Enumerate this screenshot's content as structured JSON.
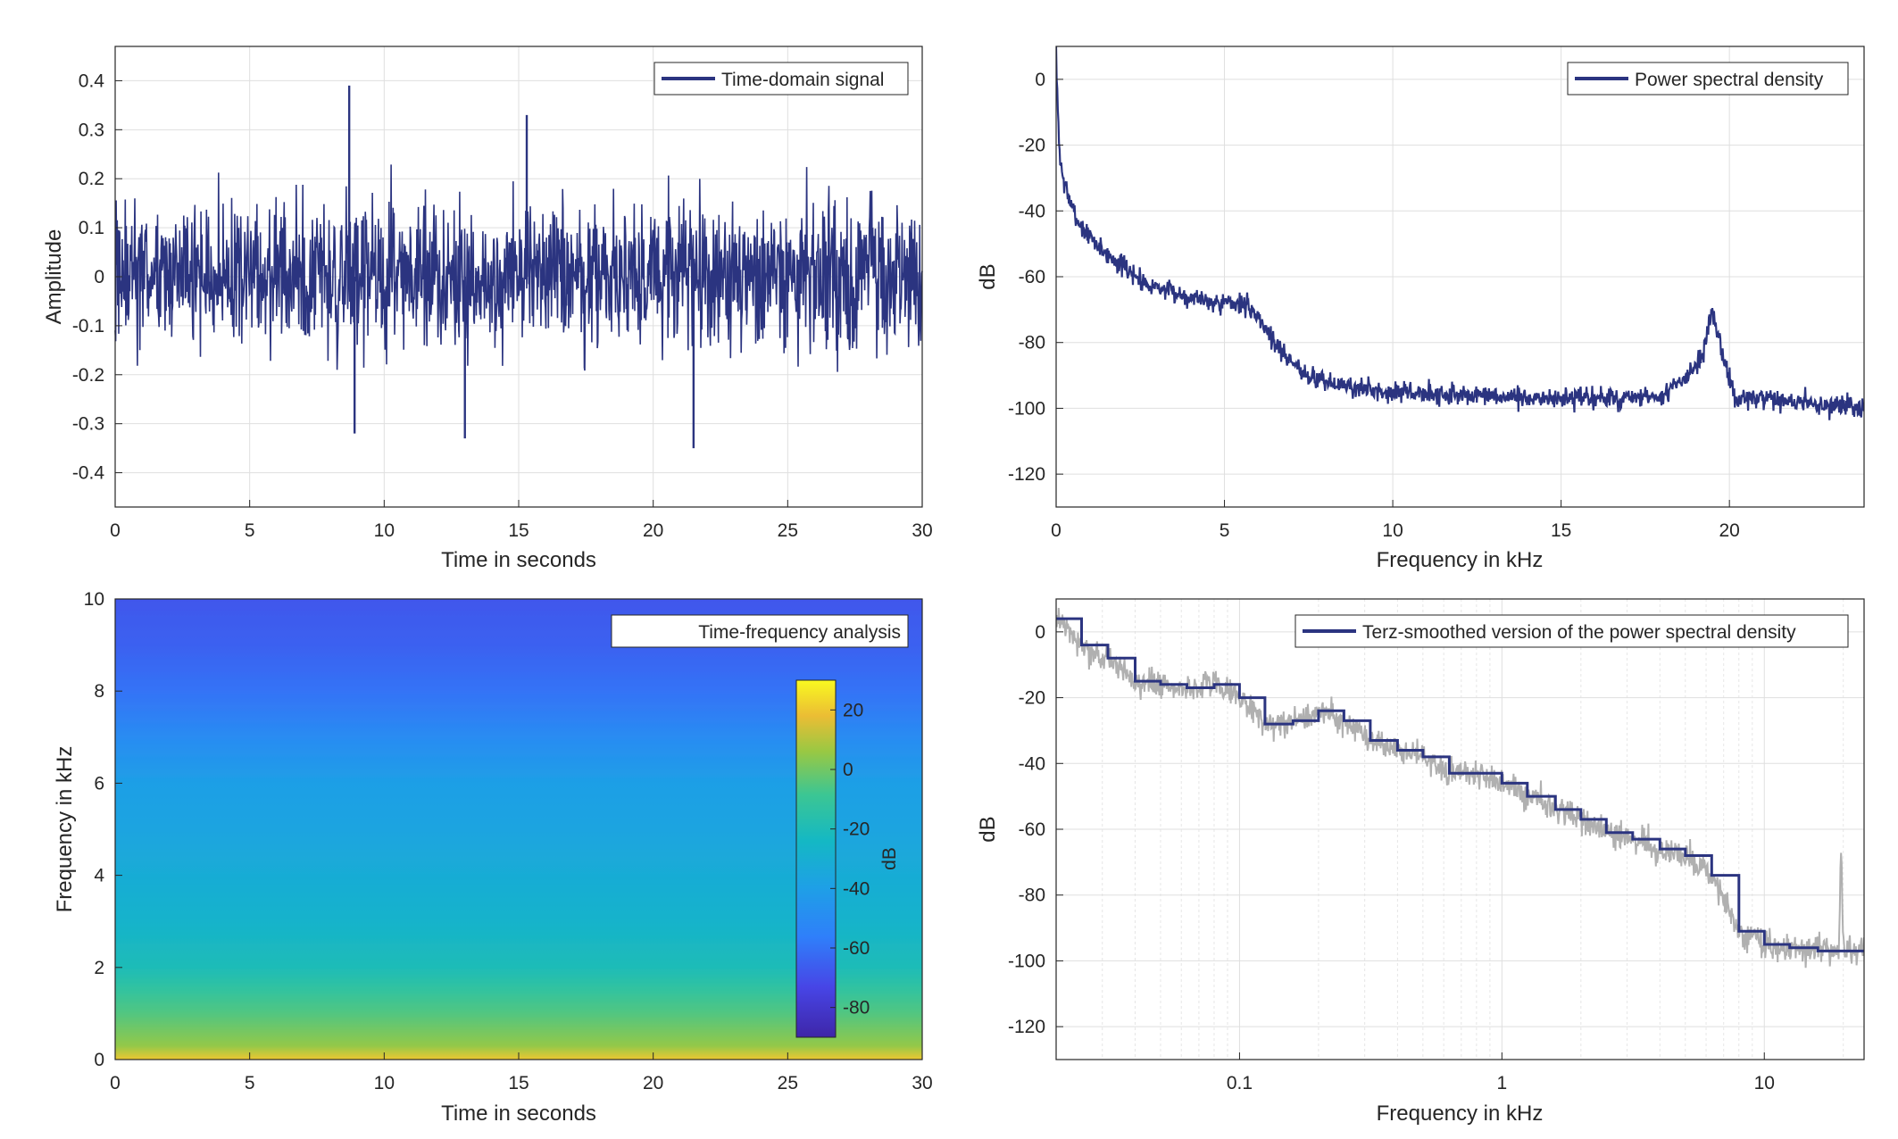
{
  "chart_data": [
    {
      "type": "line",
      "series": [
        {
          "name": "Time-domain signal"
        }
      ],
      "xlabel": "Time in seconds",
      "ylabel": "Amplitude",
      "xlim": [
        0,
        30
      ],
      "ylim": [
        -0.47,
        0.47
      ],
      "xticks": [
        "0",
        "5",
        "10",
        "15",
        "20",
        "25",
        "30"
      ],
      "yticks": [
        "0.4",
        "0.3",
        "0.2",
        "0.1",
        "0",
        "-0.1",
        "-0.2",
        "-0.3",
        "-0.4"
      ],
      "color": "#2b3480",
      "grid": true,
      "legend": "top-right",
      "approx_envelope": {
        "typical_max": 0.2,
        "typical_min": -0.2,
        "peaks": [
          {
            "t": 8.7,
            "v": 0.39
          },
          {
            "t": 15.3,
            "v": 0.33
          },
          {
            "t": 21.5,
            "v": -0.35
          },
          {
            "t": 13.0,
            "v": -0.33
          },
          {
            "t": 8.9,
            "v": -0.32
          }
        ]
      }
    },
    {
      "type": "line",
      "series": [
        {
          "name": "Power spectral density"
        }
      ],
      "xlabel": "Frequency in kHz",
      "ylabel": "dB",
      "xlim": [
        0,
        24
      ],
      "ylim": [
        -130,
        10
      ],
      "xticks": [
        "0",
        "5",
        "10",
        "15",
        "20"
      ],
      "yticks": [
        "0",
        "-20",
        "-40",
        "-60",
        "-80",
        "-100",
        "-120"
      ],
      "color": "#2b3480",
      "grid": true,
      "legend": "top-right",
      "x": [
        0,
        0.05,
        0.1,
        0.2,
        0.35,
        0.5,
        0.7,
        1.0,
        1.5,
        2.0,
        2.5,
        3.0,
        3.5,
        4.0,
        4.5,
        5.0,
        5.5,
        6.0,
        6.5,
        7.0,
        7.5,
        8.0,
        8.5,
        9.0,
        10,
        12,
        14,
        16,
        18,
        19.2,
        19.5,
        19.8,
        20.2,
        22,
        24
      ],
      "values": [
        8,
        -10,
        -22,
        -30,
        -35,
        -40,
        -44,
        -48,
        -53,
        -57,
        -61,
        -63,
        -65,
        -66,
        -67,
        -68,
        -68,
        -72,
        -80,
        -86,
        -90,
        -92,
        -93,
        -94,
        -95,
        -96,
        -97,
        -97,
        -97,
        -85,
        -70,
        -85,
        -97,
        -98,
        -100
      ]
    },
    {
      "type": "heatmap",
      "title": "Time-frequency analysis",
      "xlabel": "Time in seconds",
      "ylabel": "Frequency in kHz",
      "xlim": [
        0,
        30
      ],
      "ylim": [
        0,
        10
      ],
      "xticks": [
        "0",
        "5",
        "10",
        "15",
        "20",
        "25",
        "30"
      ],
      "yticks": [
        "10",
        "8",
        "6",
        "4",
        "2",
        "0"
      ],
      "colorbar": {
        "label": "dB",
        "range": [
          -90,
          30
        ],
        "ticks": [
          "20",
          "0",
          "-20",
          "-40",
          "-60",
          "-80"
        ],
        "colormap": "parula"
      },
      "freq_profile_kHz": [
        0,
        0.3,
        1,
        1.5,
        2,
        3,
        4,
        5,
        6,
        7,
        8,
        9,
        10
      ],
      "freq_profile_dB": [
        20,
        5,
        -5,
        -12,
        -20,
        -27,
        -32,
        -37,
        -40,
        -50,
        -60,
        -65,
        -68
      ]
    },
    {
      "type": "line",
      "series": [
        {
          "name": "Terz-smoothed version of the power spectral density",
          "color": "#2b3480"
        },
        {
          "name": "",
          "color": "#b0b0b0"
        }
      ],
      "xlabel": "Frequency in kHz",
      "ylabel": "dB",
      "xscale": "log",
      "xlim": [
        0.02,
        24
      ],
      "ylim": [
        -130,
        10
      ],
      "xticks": [
        "0.1",
        "1",
        "10"
      ],
      "yticks": [
        "0",
        "-20",
        "-40",
        "-60",
        "-80",
        "-100",
        "-120"
      ],
      "grid": true,
      "legend": "top-right",
      "steps_kHz": [
        0.02,
        0.025,
        0.0315,
        0.04,
        0.05,
        0.063,
        0.08,
        0.1,
        0.125,
        0.16,
        0.2,
        0.25,
        0.315,
        0.4,
        0.5,
        0.63,
        0.8,
        1.0,
        1.25,
        1.6,
        2.0,
        2.5,
        3.15,
        4.0,
        5.0,
        6.3,
        8.0,
        10,
        12.5,
        16,
        20,
        24
      ],
      "steps_dB": [
        4,
        -4,
        -8,
        -15,
        -16,
        -17,
        -16,
        -20,
        -28,
        -27,
        -24,
        -27,
        -33,
        -36,
        -38,
        -43,
        -43,
        -46,
        -50,
        -54,
        -57,
        -61,
        -63,
        -66,
        -68,
        -74,
        -91,
        -95,
        -96,
        -97,
        -97,
        -97
      ]
    }
  ]
}
